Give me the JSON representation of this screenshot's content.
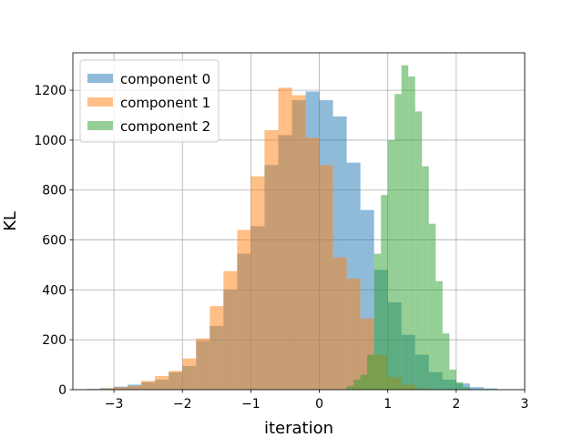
{
  "chart_data": {
    "type": "histogram",
    "xlabel": "iteration",
    "ylabel": "KL",
    "xlim": [
      -3.6,
      3.0
    ],
    "ylim": [
      0,
      1350
    ],
    "xticks": [
      -3,
      -2,
      -1,
      0,
      1,
      2,
      3
    ],
    "xtick_labels": [
      "−3",
      "−2",
      "−1",
      "0",
      "1",
      "2",
      "3"
    ],
    "yticks": [
      0,
      200,
      400,
      600,
      800,
      1000,
      1200
    ],
    "ytick_labels": [
      "0",
      "200",
      "400",
      "600",
      "800",
      "1000",
      "1200"
    ],
    "grid": true,
    "legend_position": "upper-left",
    "series": [
      {
        "name": "component 0",
        "color": "#1f77b4",
        "opacity": 0.5,
        "bin_width": 0.2,
        "bins": [
          [
            -3.3,
            3
          ],
          [
            -3.1,
            6
          ],
          [
            -2.9,
            12
          ],
          [
            -2.7,
            20
          ],
          [
            -2.5,
            30
          ],
          [
            -2.3,
            40
          ],
          [
            -2.1,
            70
          ],
          [
            -1.9,
            95
          ],
          [
            -1.7,
            195
          ],
          [
            -1.5,
            255
          ],
          [
            -1.3,
            400
          ],
          [
            -1.1,
            545
          ],
          [
            -0.9,
            655
          ],
          [
            -0.7,
            900
          ],
          [
            -0.5,
            1020
          ],
          [
            -0.3,
            1160
          ],
          [
            -0.1,
            1195
          ],
          [
            0.1,
            1160
          ],
          [
            0.3,
            1095
          ],
          [
            0.5,
            910
          ],
          [
            0.7,
            720
          ],
          [
            0.9,
            480
          ],
          [
            1.1,
            350
          ],
          [
            1.3,
            220
          ],
          [
            1.5,
            140
          ],
          [
            1.7,
            70
          ],
          [
            1.9,
            40
          ],
          [
            2.1,
            25
          ],
          [
            2.3,
            10
          ],
          [
            2.5,
            5
          ]
        ]
      },
      {
        "name": "component 1",
        "color": "#ff7f0e",
        "opacity": 0.5,
        "bin_width": 0.2,
        "bins": [
          [
            -3.1,
            5
          ],
          [
            -2.9,
            10
          ],
          [
            -2.7,
            15
          ],
          [
            -2.5,
            35
          ],
          [
            -2.3,
            55
          ],
          [
            -2.1,
            75
          ],
          [
            -1.9,
            125
          ],
          [
            -1.7,
            205
          ],
          [
            -1.5,
            335
          ],
          [
            -1.3,
            475
          ],
          [
            -1.1,
            640
          ],
          [
            -0.9,
            855
          ],
          [
            -0.7,
            1040
          ],
          [
            -0.5,
            1210
          ],
          [
            -0.3,
            1180
          ],
          [
            -0.1,
            1010
          ],
          [
            0.1,
            900
          ],
          [
            0.3,
            530
          ],
          [
            0.5,
            445
          ],
          [
            0.7,
            285
          ],
          [
            0.9,
            140
          ],
          [
            1.1,
            50
          ],
          [
            1.3,
            20
          ],
          [
            1.5,
            5
          ]
        ]
      },
      {
        "name": "component 2",
        "color": "#2ca02c",
        "opacity": 0.5,
        "bin_width": 0.1,
        "bins": [
          [
            0.45,
            15
          ],
          [
            0.55,
            40
          ],
          [
            0.65,
            60
          ],
          [
            0.75,
            140
          ],
          [
            0.85,
            545
          ],
          [
            0.95,
            780
          ],
          [
            1.05,
            1000
          ],
          [
            1.15,
            1185
          ],
          [
            1.25,
            1300
          ],
          [
            1.35,
            1255
          ],
          [
            1.45,
            1115
          ],
          [
            1.55,
            895
          ],
          [
            1.65,
            665
          ],
          [
            1.75,
            435
          ],
          [
            1.85,
            225
          ],
          [
            1.95,
            80
          ],
          [
            2.05,
            30
          ],
          [
            2.15,
            10
          ]
        ]
      }
    ]
  }
}
